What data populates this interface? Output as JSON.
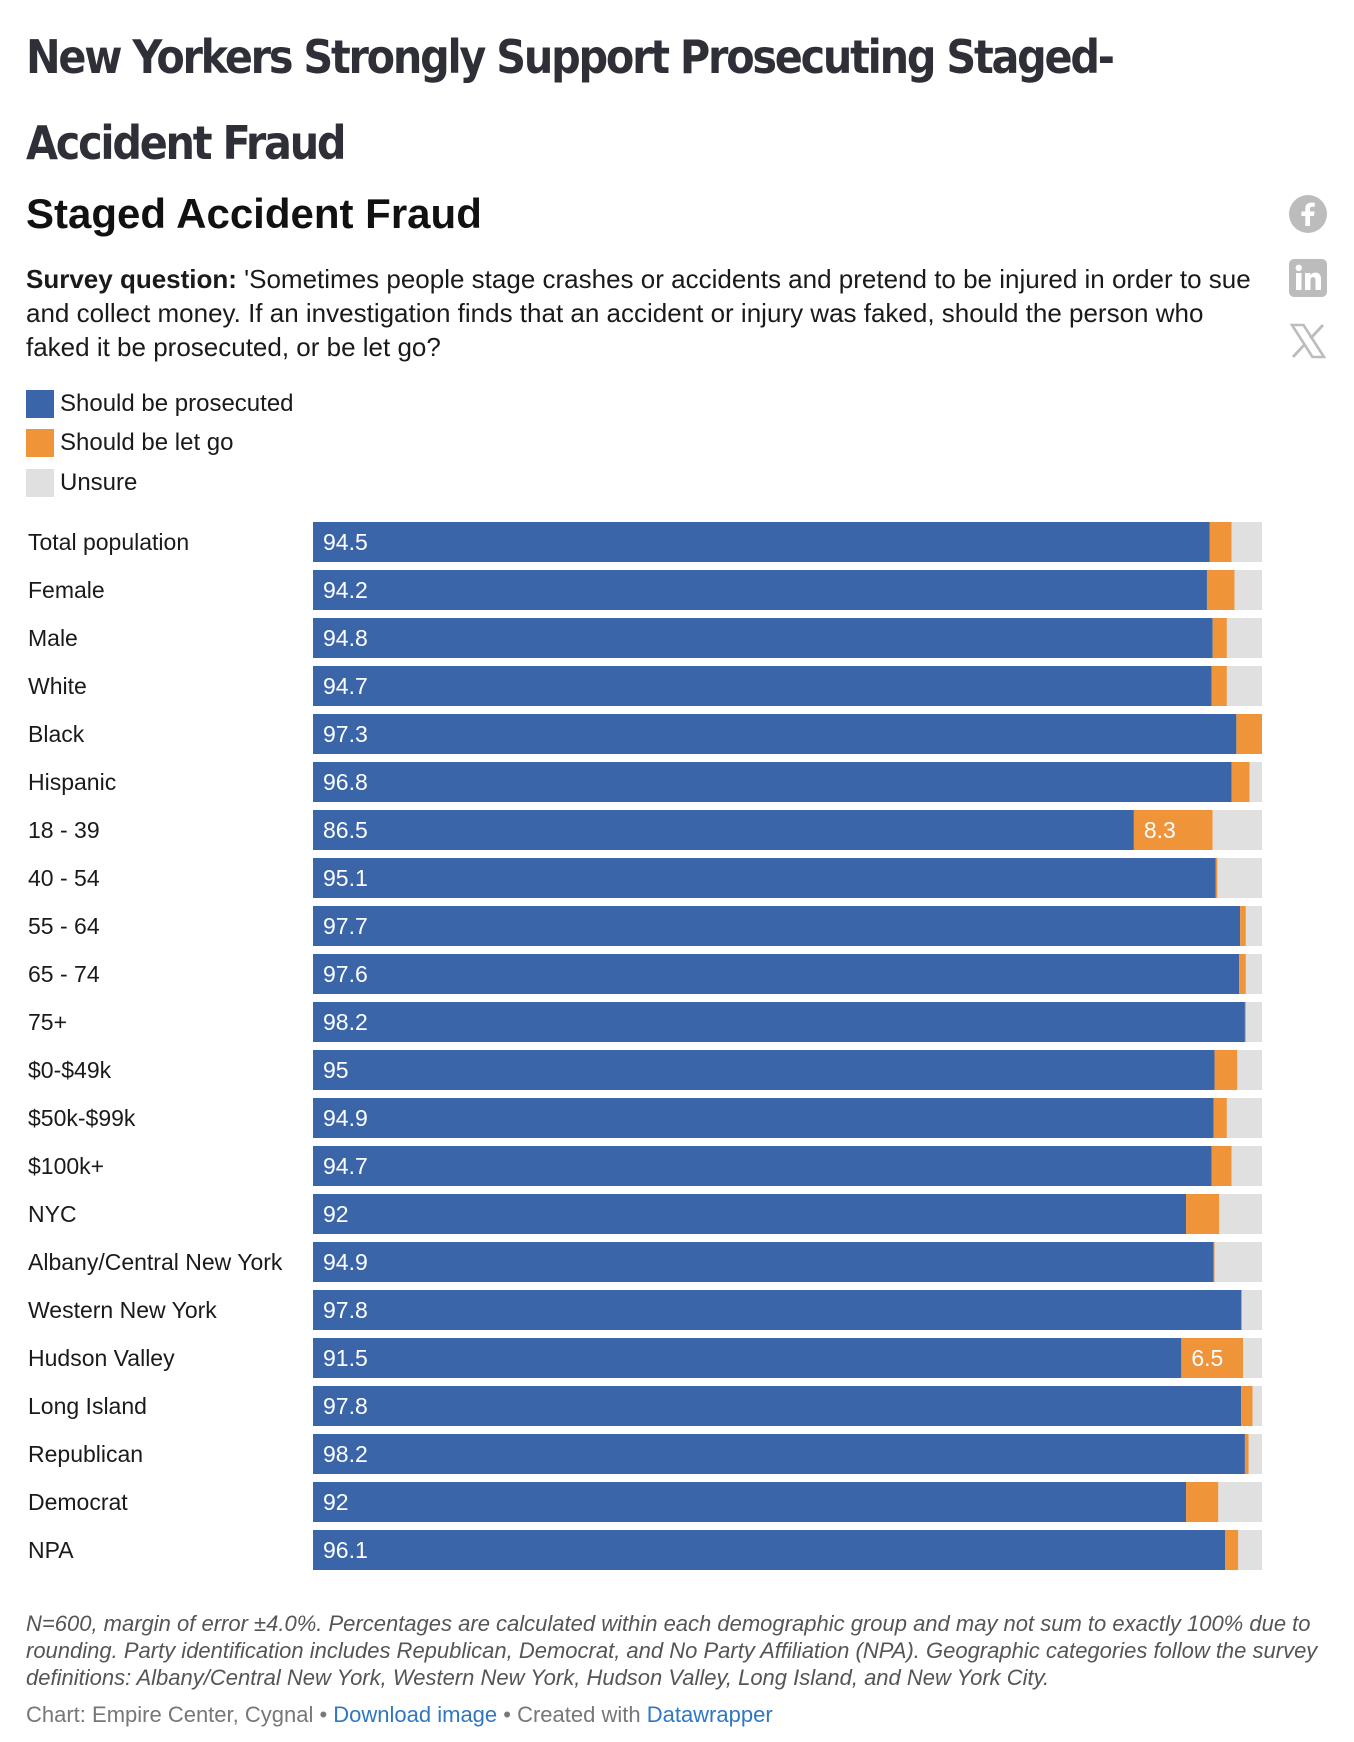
{
  "headline": "New Yorkers Strongly Support Prosecuting Staged-Accident Fraud",
  "chart_data": {
    "type": "bar",
    "orientation": "horizontal",
    "stacked": true,
    "title": "Staged Accident Fraud",
    "question_label": "Survey question:",
    "question_text": " 'Sometimes people stage crashes or accidents and pretend to be injured in order to sue and collect money. If an investigation finds that an accident or injury was faked, should the person who faked it be prosecuted, or be let go?",
    "xlim": [
      0,
      100
    ],
    "legend_placement": "top-left",
    "categories": [
      "Total population",
      "Female",
      "Male",
      "White",
      "Black",
      "Hispanic",
      "18 - 39",
      "40 - 54",
      "55 - 64",
      "65 - 74",
      "75+",
      "$0-$49k",
      "$50k-$99k",
      "$100k+",
      "NYC",
      "Albany/Central New York",
      "Western New York",
      "Hudson Valley",
      "Long Island",
      "Republican",
      "Democrat",
      "NPA"
    ],
    "series": [
      {
        "name": "Should be prosecuted",
        "color": "#3a65a9",
        "values": [
          94.5,
          94.2,
          94.8,
          94.7,
          97.3,
          96.8,
          86.5,
          95.1,
          97.7,
          97.6,
          98.2,
          95,
          94.9,
          94.7,
          92,
          94.9,
          97.8,
          91.5,
          97.8,
          98.2,
          92,
          96.1
        ]
      },
      {
        "name": "Should be let go",
        "color": "#f0943a",
        "values": [
          2.3,
          2.9,
          1.5,
          1.6,
          2.7,
          1.9,
          8.3,
          0.2,
          0.6,
          0.7,
          0.1,
          2.4,
          1.4,
          2.1,
          3.5,
          0.1,
          0.1,
          6.5,
          1.2,
          0.4,
          3.4,
          1.4
        ]
      },
      {
        "name": "Unsure",
        "color": "#e0e0e0",
        "values": [
          3.2,
          2.9,
          3.7,
          3.7,
          0,
          1.3,
          5.2,
          4.7,
          1.7,
          1.7,
          1.7,
          2.6,
          3.7,
          3.2,
          4.5,
          5,
          2.1,
          2,
          1,
          1.4,
          4.6,
          2.5
        ]
      }
    ]
  },
  "footnote": "N=600, margin of error ±4.0%. Percentages are calculated within each demographic group and may not sum to exactly 100% due to rounding. Party identification includes Republican, Democrat, and No Party Affiliation (NPA). Geographic categories follow the survey definitions: Albany/Central New York, Western New York, Hudson Valley, Long Island, and New York City.",
  "source": {
    "prefix": "Chart: Empire Center, Cygnal • ",
    "download_link": "Download image",
    "middle": " • Created with ",
    "datawrapper_link": "Datawrapper"
  },
  "social": {
    "icons": [
      "facebook-icon",
      "linkedin-icon",
      "x-icon"
    ],
    "color": "#bcbcbc"
  }
}
